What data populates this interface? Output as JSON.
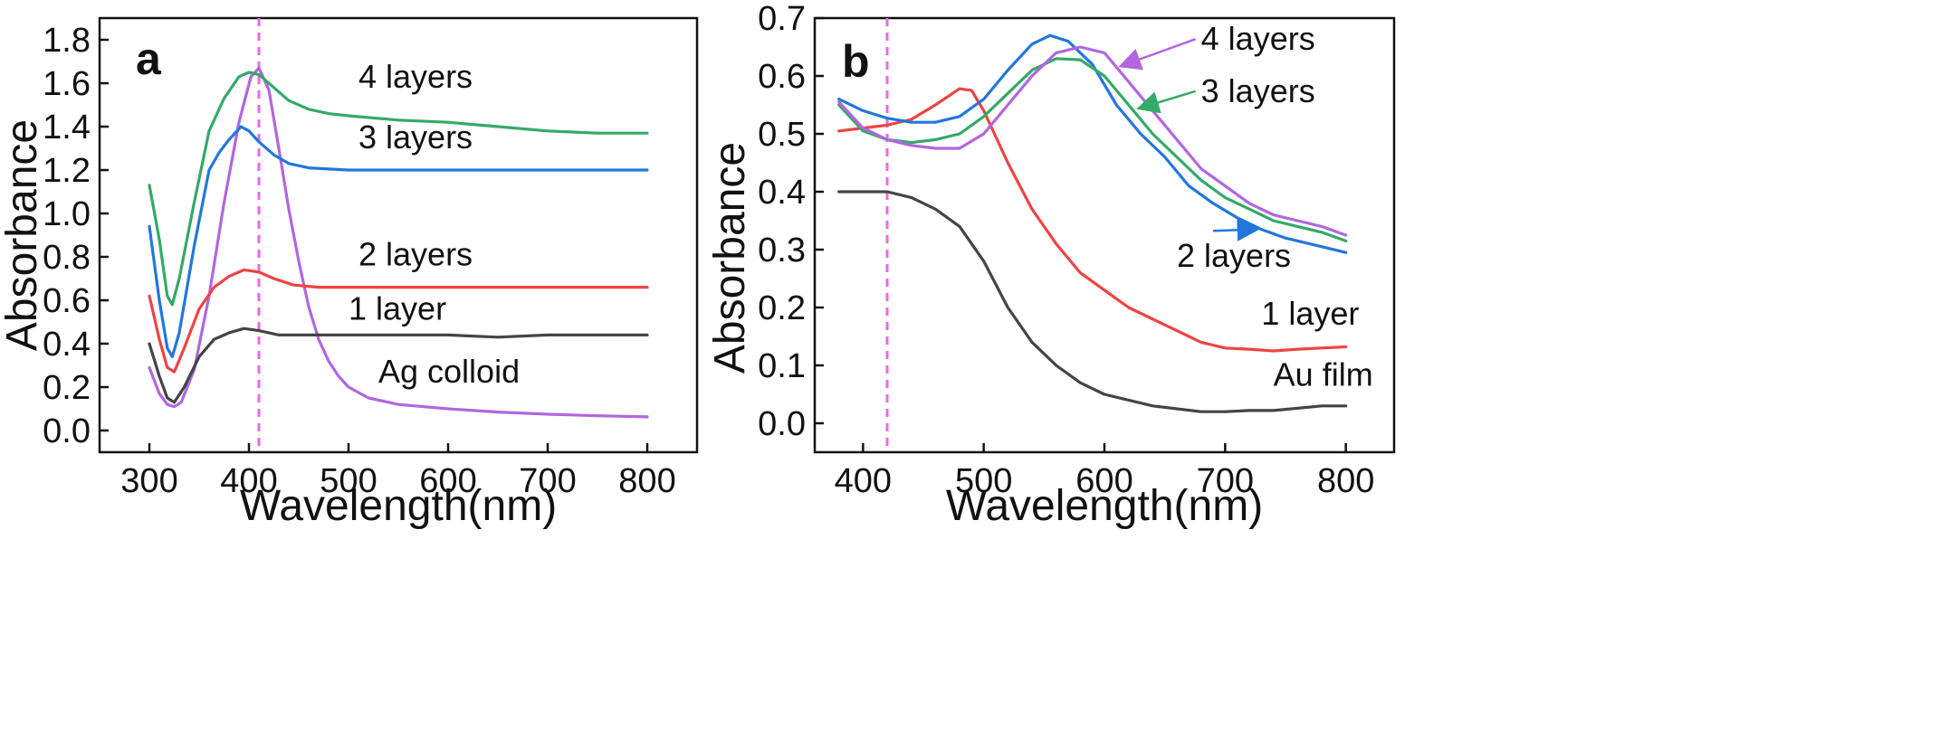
{
  "chart_data": [
    {
      "type": "line",
      "panel_label": "a",
      "xlabel": "Wavelength(nm)",
      "ylabel": "Absorbance",
      "xlim": [
        250,
        850
      ],
      "ylim": [
        -0.1,
        1.9
      ],
      "xticks": [
        300,
        400,
        500,
        600,
        700,
        800
      ],
      "yticks": [
        0.0,
        0.2,
        0.4,
        0.6,
        0.8,
        1.0,
        1.2,
        1.4,
        1.6,
        1.8
      ],
      "tick_labels_x": [
        "300",
        "400",
        "500",
        "600",
        "700",
        "800"
      ],
      "tick_labels_y": [
        "0.0",
        "0.2",
        "0.4",
        "0.6",
        "0.8",
        "1.0",
        "1.2",
        "1.4",
        "1.6",
        "1.8"
      ],
      "reference_line_x": 410,
      "reference_line_color": "#ee66ee",
      "grid": false,
      "series": [
        {
          "name": "Ag colloid",
          "color": "#b266e0",
          "points": [
            [
              300,
              0.29
            ],
            [
              310,
              0.17
            ],
            [
              318,
              0.12
            ],
            [
              325,
              0.11
            ],
            [
              332,
              0.13
            ],
            [
              345,
              0.28
            ],
            [
              360,
              0.62
            ],
            [
              375,
              1.05
            ],
            [
              390,
              1.42
            ],
            [
              402,
              1.63
            ],
            [
              410,
              1.67
            ],
            [
              420,
              1.57
            ],
            [
              430,
              1.3
            ],
            [
              440,
              1.02
            ],
            [
              450,
              0.78
            ],
            [
              460,
              0.57
            ],
            [
              470,
              0.42
            ],
            [
              480,
              0.32
            ],
            [
              490,
              0.25
            ],
            [
              500,
              0.2
            ],
            [
              520,
              0.15
            ],
            [
              550,
              0.12
            ],
            [
              600,
              0.1
            ],
            [
              650,
              0.085
            ],
            [
              700,
              0.075
            ],
            [
              750,
              0.068
            ],
            [
              800,
              0.063
            ]
          ]
        },
        {
          "name": "1 layer",
          "color": "#444444",
          "points": [
            [
              300,
              0.4
            ],
            [
              310,
              0.25
            ],
            [
              318,
              0.15
            ],
            [
              325,
              0.13
            ],
            [
              335,
              0.2
            ],
            [
              350,
              0.34
            ],
            [
              365,
              0.42
            ],
            [
              380,
              0.45
            ],
            [
              395,
              0.47
            ],
            [
              410,
              0.46
            ],
            [
              430,
              0.44
            ],
            [
              460,
              0.44
            ],
            [
              500,
              0.44
            ],
            [
              550,
              0.44
            ],
            [
              600,
              0.44
            ],
            [
              650,
              0.43
            ],
            [
              700,
              0.44
            ],
            [
              750,
              0.44
            ],
            [
              800,
              0.44
            ]
          ]
        },
        {
          "name": "2 layers",
          "color": "#ee4444",
          "points": [
            [
              300,
              0.62
            ],
            [
              310,
              0.42
            ],
            [
              318,
              0.29
            ],
            [
              325,
              0.27
            ],
            [
              335,
              0.38
            ],
            [
              350,
              0.56
            ],
            [
              365,
              0.66
            ],
            [
              380,
              0.71
            ],
            [
              395,
              0.74
            ],
            [
              410,
              0.73
            ],
            [
              425,
              0.7
            ],
            [
              445,
              0.67
            ],
            [
              470,
              0.66
            ],
            [
              500,
              0.66
            ],
            [
              600,
              0.66
            ],
            [
              700,
              0.66
            ],
            [
              800,
              0.66
            ]
          ]
        },
        {
          "name": "3 layers",
          "color": "#2277dd",
          "points": [
            [
              300,
              0.94
            ],
            [
              310,
              0.6
            ],
            [
              318,
              0.38
            ],
            [
              323,
              0.34
            ],
            [
              330,
              0.45
            ],
            [
              345,
              0.85
            ],
            [
              360,
              1.2
            ],
            [
              370,
              1.28
            ],
            [
              380,
              1.34
            ],
            [
              392,
              1.4
            ],
            [
              400,
              1.38
            ],
            [
              410,
              1.33
            ],
            [
              425,
              1.27
            ],
            [
              440,
              1.23
            ],
            [
              460,
              1.21
            ],
            [
              500,
              1.2
            ],
            [
              600,
              1.2
            ],
            [
              700,
              1.2
            ],
            [
              800,
              1.2
            ]
          ]
        },
        {
          "name": "4 layers",
          "color": "#33aa66",
          "points": [
            [
              300,
              1.13
            ],
            [
              310,
              0.88
            ],
            [
              318,
              0.62
            ],
            [
              323,
              0.58
            ],
            [
              330,
              0.7
            ],
            [
              345,
              1.05
            ],
            [
              360,
              1.38
            ],
            [
              375,
              1.53
            ],
            [
              390,
              1.63
            ],
            [
              400,
              1.65
            ],
            [
              410,
              1.64
            ],
            [
              425,
              1.58
            ],
            [
              440,
              1.52
            ],
            [
              460,
              1.48
            ],
            [
              480,
              1.46
            ],
            [
              500,
              1.45
            ],
            [
              550,
              1.43
            ],
            [
              600,
              1.42
            ],
            [
              650,
              1.4
            ],
            [
              700,
              1.38
            ],
            [
              750,
              1.37
            ],
            [
              800,
              1.37
            ]
          ]
        }
      ],
      "annotations": [
        {
          "text": "4 layers",
          "x": 510,
          "y": 1.58
        },
        {
          "text": "3 layers",
          "x": 510,
          "y": 1.3
        },
        {
          "text": "2 layers",
          "x": 510,
          "y": 0.76
        },
        {
          "text": "1 layer",
          "x": 500,
          "y": 0.51
        },
        {
          "text": "Ag colloid",
          "x": 530,
          "y": 0.22
        }
      ]
    },
    {
      "type": "line",
      "panel_label": "b",
      "xlabel": "Wavelength(nm)",
      "ylabel": "Absorbance",
      "xlim": [
        360,
        840
      ],
      "ylim": [
        -0.05,
        0.7
      ],
      "xticks": [
        400,
        500,
        600,
        700,
        800
      ],
      "yticks": [
        0.0,
        0.1,
        0.2,
        0.3,
        0.4,
        0.5,
        0.6,
        0.7
      ],
      "tick_labels_x": [
        "400",
        "500",
        "600",
        "700",
        "800"
      ],
      "tick_labels_y": [
        "0.0",
        "0.1",
        "0.2",
        "0.3",
        "0.4",
        "0.5",
        "0.6",
        "0.7"
      ],
      "reference_line_x": 420,
      "reference_line_color": "#ee66ee",
      "grid": false,
      "series": [
        {
          "name": "Au film",
          "color": "#444444",
          "points": [
            [
              380,
              0.4
            ],
            [
              400,
              0.4
            ],
            [
              420,
              0.4
            ],
            [
              440,
              0.39
            ],
            [
              460,
              0.37
            ],
            [
              480,
              0.34
            ],
            [
              500,
              0.28
            ],
            [
              520,
              0.2
            ],
            [
              540,
              0.14
            ],
            [
              560,
              0.1
            ],
            [
              580,
              0.07
            ],
            [
              600,
              0.05
            ],
            [
              620,
              0.04
            ],
            [
              640,
              0.03
            ],
            [
              660,
              0.025
            ],
            [
              680,
              0.02
            ],
            [
              700,
              0.02
            ],
            [
              720,
              0.022
            ],
            [
              740,
              0.022
            ],
            [
              760,
              0.026
            ],
            [
              780,
              0.03
            ],
            [
              800,
              0.03
            ]
          ]
        },
        {
          "name": "1 layer",
          "color": "#ee4444",
          "points": [
            [
              380,
              0.505
            ],
            [
              400,
              0.51
            ],
            [
              420,
              0.515
            ],
            [
              440,
              0.525
            ],
            [
              460,
              0.55
            ],
            [
              480,
              0.578
            ],
            [
              490,
              0.575
            ],
            [
              500,
              0.54
            ],
            [
              520,
              0.45
            ],
            [
              540,
              0.37
            ],
            [
              560,
              0.31
            ],
            [
              580,
              0.26
            ],
            [
              600,
              0.23
            ],
            [
              620,
              0.2
            ],
            [
              640,
              0.18
            ],
            [
              660,
              0.16
            ],
            [
              680,
              0.14
            ],
            [
              700,
              0.13
            ],
            [
              720,
              0.128
            ],
            [
              740,
              0.125
            ],
            [
              760,
              0.128
            ],
            [
              780,
              0.13
            ],
            [
              800,
              0.132
            ]
          ]
        },
        {
          "name": "2 layers",
          "color": "#2277dd",
          "points": [
            [
              380,
              0.56
            ],
            [
              400,
              0.54
            ],
            [
              420,
              0.527
            ],
            [
              440,
              0.52
            ],
            [
              460,
              0.52
            ],
            [
              480,
              0.53
            ],
            [
              500,
              0.56
            ],
            [
              520,
              0.61
            ],
            [
              540,
              0.655
            ],
            [
              555,
              0.67
            ],
            [
              570,
              0.66
            ],
            [
              590,
              0.62
            ],
            [
              610,
              0.55
            ],
            [
              630,
              0.5
            ],
            [
              650,
              0.46
            ],
            [
              670,
              0.41
            ],
            [
              690,
              0.38
            ],
            [
              710,
              0.355
            ],
            [
              730,
              0.335
            ],
            [
              750,
              0.32
            ],
            [
              770,
              0.31
            ],
            [
              800,
              0.295
            ]
          ]
        },
        {
          "name": "3 layers",
          "color": "#33aa66",
          "points": [
            [
              380,
              0.55
            ],
            [
              400,
              0.505
            ],
            [
              420,
              0.49
            ],
            [
              440,
              0.485
            ],
            [
              460,
              0.49
            ],
            [
              480,
              0.5
            ],
            [
              500,
              0.53
            ],
            [
              520,
              0.57
            ],
            [
              540,
              0.61
            ],
            [
              560,
              0.63
            ],
            [
              580,
              0.628
            ],
            [
              600,
              0.6
            ],
            [
              620,
              0.55
            ],
            [
              640,
              0.5
            ],
            [
              660,
              0.46
            ],
            [
              680,
              0.42
            ],
            [
              700,
              0.39
            ],
            [
              720,
              0.37
            ],
            [
              740,
              0.35
            ],
            [
              760,
              0.34
            ],
            [
              780,
              0.33
            ],
            [
              800,
              0.315
            ]
          ]
        },
        {
          "name": "4 layers",
          "color": "#b266e0",
          "points": [
            [
              380,
              0.555
            ],
            [
              400,
              0.51
            ],
            [
              420,
              0.49
            ],
            [
              440,
              0.48
            ],
            [
              460,
              0.475
            ],
            [
              480,
              0.475
            ],
            [
              500,
              0.5
            ],
            [
              520,
              0.55
            ],
            [
              540,
              0.6
            ],
            [
              560,
              0.64
            ],
            [
              580,
              0.65
            ],
            [
              600,
              0.64
            ],
            [
              620,
              0.59
            ],
            [
              640,
              0.54
            ],
            [
              660,
              0.49
            ],
            [
              680,
              0.44
            ],
            [
              700,
              0.41
            ],
            [
              720,
              0.38
            ],
            [
              740,
              0.36
            ],
            [
              760,
              0.35
            ],
            [
              780,
              0.34
            ],
            [
              800,
              0.325
            ]
          ]
        }
      ],
      "annotations": [
        {
          "text": "4 layers",
          "x": 680,
          "y": 0.645,
          "arrow_to": [
            615,
            0.618
          ],
          "color": "#b266e0"
        },
        {
          "text": "3 layers",
          "x": 680,
          "y": 0.555,
          "arrow_to": [
            630,
            0.545
          ],
          "color": "#33aa66"
        },
        {
          "text": "2 layers",
          "x": 660,
          "y": 0.27,
          "arrow_to": [
            725,
            0.335
          ],
          "color": "#2277dd"
        },
        {
          "text": "1 layer",
          "x": 730,
          "y": 0.17
        },
        {
          "text": "Au film",
          "x": 740,
          "y": 0.065
        }
      ]
    }
  ]
}
